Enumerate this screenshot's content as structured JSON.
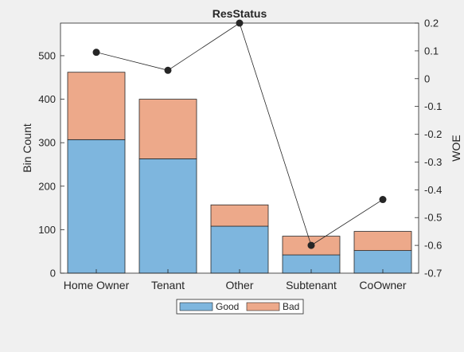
{
  "chart_data": {
    "type": "bar",
    "title": "ResStatus",
    "categories": [
      "Home Owner",
      "Tenant",
      "Other",
      "Subtenant",
      "CoOwner"
    ],
    "stacked": true,
    "series": [
      {
        "name": "Good",
        "values": [
          307,
          263,
          108,
          42,
          52
        ],
        "color": "#7eb6de"
      },
      {
        "name": "Bad",
        "values": [
          155,
          137,
          49,
          43,
          44
        ],
        "color": "#eda98a"
      }
    ],
    "woe": {
      "values": [
        0.095,
        0.03,
        0.2,
        -0.6,
        -0.435
      ],
      "color": "#262626"
    },
    "ylabel": "Bin Count",
    "ylim": [
      0,
      575
    ],
    "yticks": [
      0,
      100,
      200,
      300,
      400,
      500
    ],
    "y2label": "WOE",
    "y2lim": [
      -0.7,
      0.2
    ],
    "y2ticks": [
      "0.2",
      "0.1",
      "0",
      "-0.1",
      "-0.2",
      "-0.3",
      "-0.4",
      "-0.5",
      "-0.6",
      "-0.7"
    ],
    "legend": {
      "placement": "bottom-center",
      "entries": [
        "Good",
        "Bad"
      ]
    },
    "grid": false
  }
}
